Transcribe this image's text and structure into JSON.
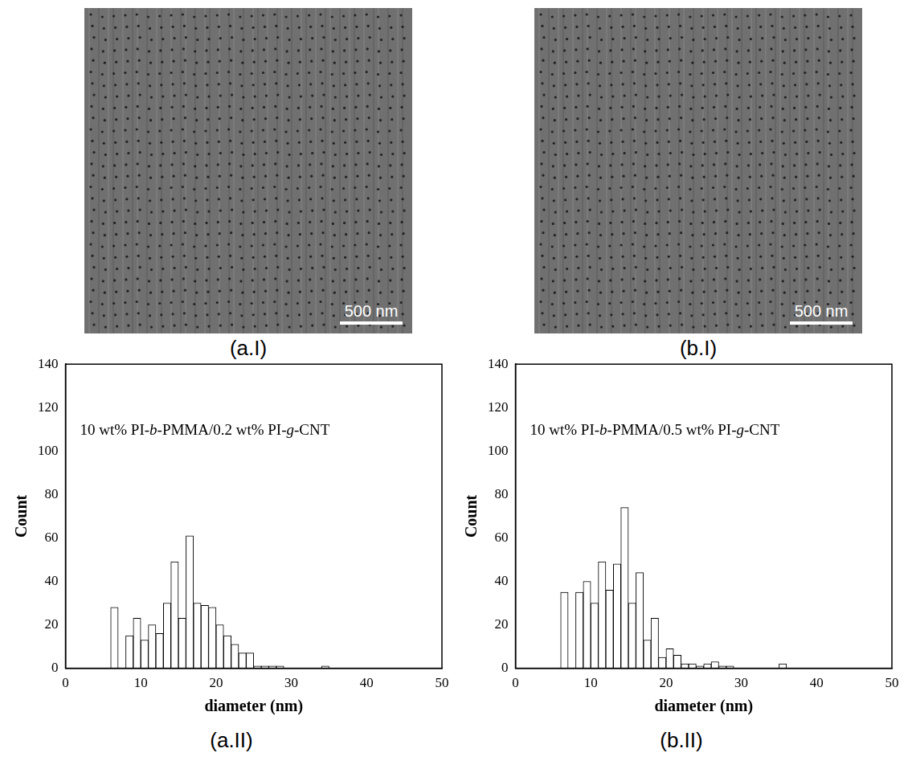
{
  "panels": [
    {
      "label": "(a.I)",
      "scale_bar": "500 nm"
    },
    {
      "label": "(b.I)",
      "scale_bar": "500 nm"
    }
  ],
  "chart_data": [
    {
      "type": "histogram",
      "panel": "(a.II)",
      "annotation": "10 wt% PI-b-PMMA/0.2 wt% PI-g-CNT",
      "x_label": "diameter (nm)",
      "y_label": "Count",
      "bins": [
        6,
        7,
        8,
        9,
        10,
        11,
        12,
        13,
        14,
        15,
        16,
        17,
        18,
        19,
        20,
        21,
        22,
        23,
        24,
        25,
        26,
        27,
        28,
        29,
        30,
        31,
        32,
        33,
        34,
        35,
        36
      ],
      "values": [
        28,
        0,
        15,
        23,
        13,
        20,
        16,
        30,
        49,
        23,
        61,
        30,
        29,
        28,
        20,
        15,
        11,
        7,
        7,
        1,
        1,
        1,
        1,
        0,
        0,
        0,
        0,
        0,
        1,
        0
      ],
      "color": "#ffffff",
      "xlim": [
        0,
        50
      ],
      "xticks": [
        0,
        10,
        20,
        30,
        40,
        50
      ],
      "ylim": [
        0,
        140
      ],
      "yticks": [
        0,
        20,
        40,
        60,
        80,
        100,
        120,
        140
      ],
      "grid": false
    },
    {
      "type": "histogram",
      "panel": "(b.II)",
      "annotation": "10 wt% PI-b-PMMA/0.5 wt% PI-g-CNT",
      "x_label": "diameter (nm)",
      "y_label": "Count",
      "bins": [
        6,
        7,
        8,
        9,
        10,
        11,
        12,
        13,
        14,
        15,
        16,
        17,
        18,
        19,
        20,
        21,
        22,
        23,
        24,
        25,
        26,
        27,
        28,
        29,
        30,
        31,
        32,
        33,
        34,
        35,
        36
      ],
      "values": [
        35,
        0,
        35,
        40,
        30,
        49,
        36,
        48,
        74,
        30,
        44,
        13,
        23,
        5,
        9,
        6,
        2,
        2,
        1,
        2,
        3,
        1,
        1,
        0,
        0,
        0,
        0,
        0,
        0,
        2
      ],
      "color": "#ffffff",
      "xlim": [
        0,
        50
      ],
      "xticks": [
        0,
        10,
        20,
        30,
        40,
        50
      ],
      "ylim": [
        0,
        140
      ],
      "yticks": [
        0,
        20,
        40,
        60,
        80,
        100,
        120,
        140
      ],
      "grid": false
    }
  ]
}
